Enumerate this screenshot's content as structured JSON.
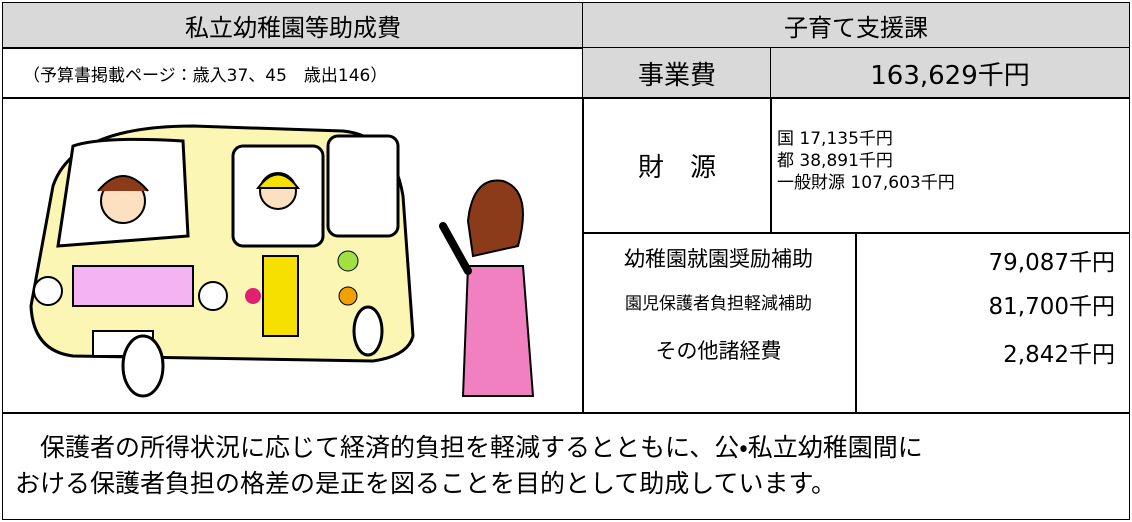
{
  "header": {
    "title": "私立幼稚園等助成費",
    "department": "子育て支援課",
    "reference": "（予算書掲載ページ：歳入37、45　歳出146）"
  },
  "budget": {
    "label": "事業費",
    "amount": "163,629千円"
  },
  "funding": {
    "label": "財　源",
    "sources": [
      "国 17,135千円",
      "都 38,891千円",
      "一般財源 107,603千円"
    ]
  },
  "items": [
    [
      "幼稚園就園奨励補助",
      "79,087千円"
    ],
    [
      "園児保護者負担軽減補助",
      "81,700千円"
    ],
    [
      "その他諸経費",
      "2,842千円"
    ]
  ],
  "description": [
    "　保護者の所得状況に応じて経済的負担を軽減するとともに、公・私立幼稚園間に",
    "おける保護者負担の格差の是正を図ることを目的として助成しています。"
  ]
}
